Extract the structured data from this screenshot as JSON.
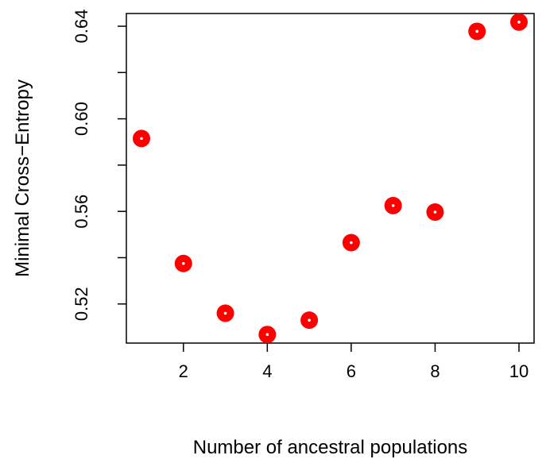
{
  "chart_data": {
    "type": "scatter",
    "title": "",
    "xlabel": "Number of ancestral populations",
    "ylabel": "Minimal Cross−Entropy",
    "x": [
      1,
      2,
      3,
      4,
      5,
      6,
      7,
      8,
      9,
      10
    ],
    "y": [
      0.5915,
      0.5375,
      0.516,
      0.5068,
      0.513,
      0.5465,
      0.5625,
      0.5597,
      0.6378,
      0.6418
    ],
    "x_ticks": [
      2,
      4,
      6,
      8,
      10
    ],
    "x_tick_labels": [
      "2",
      "4",
      "6",
      "8",
      "10"
    ],
    "y_ticks": [
      0.52,
      0.54,
      0.56,
      0.58,
      0.6,
      0.62,
      0.64
    ],
    "y_tick_labels": [
      "0.52",
      "",
      "0.56",
      "",
      "0.60",
      "",
      "0.64"
    ],
    "xlim": [
      0.64,
      10.36
    ],
    "ylim": [
      0.5031,
      0.6455
    ],
    "grid": false,
    "marker_color": "#ff0000",
    "marker_center_color": "#ffffff"
  }
}
